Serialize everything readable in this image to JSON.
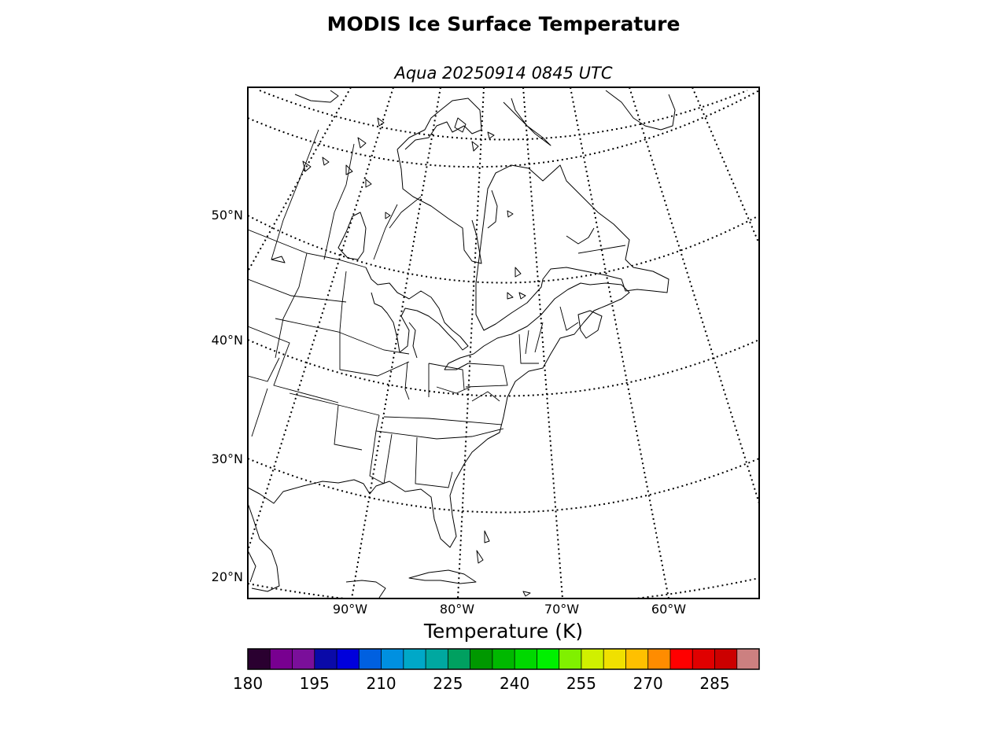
{
  "title": "MODIS Ice Surface Temperature",
  "subtitle": "Aqua 20250914 0845 UTC",
  "map": {
    "lat_labels": [
      "50°N",
      "40°N",
      "30°N",
      "20°N"
    ],
    "lon_labels": [
      "90°W",
      "80°W",
      "70°W",
      "60°W"
    ]
  },
  "colorbar": {
    "label": "Temperature (K)",
    "ticks": [
      "180",
      "195",
      "210",
      "225",
      "240",
      "255",
      "270",
      "285"
    ],
    "colors": [
      "#2a0030",
      "#780090",
      "#7a0f9a",
      "#0a0aa8",
      "#0000dc",
      "#0060e0",
      "#0090e0",
      "#00a8c8",
      "#00a8a0",
      "#00a060",
      "#009800",
      "#00b800",
      "#00d800",
      "#00f000",
      "#80f000",
      "#d0f000",
      "#f0e000",
      "#ffc000",
      "#ff8c00",
      "#ff0000",
      "#e00000",
      "#cc0000",
      "#cc8080"
    ]
  }
}
